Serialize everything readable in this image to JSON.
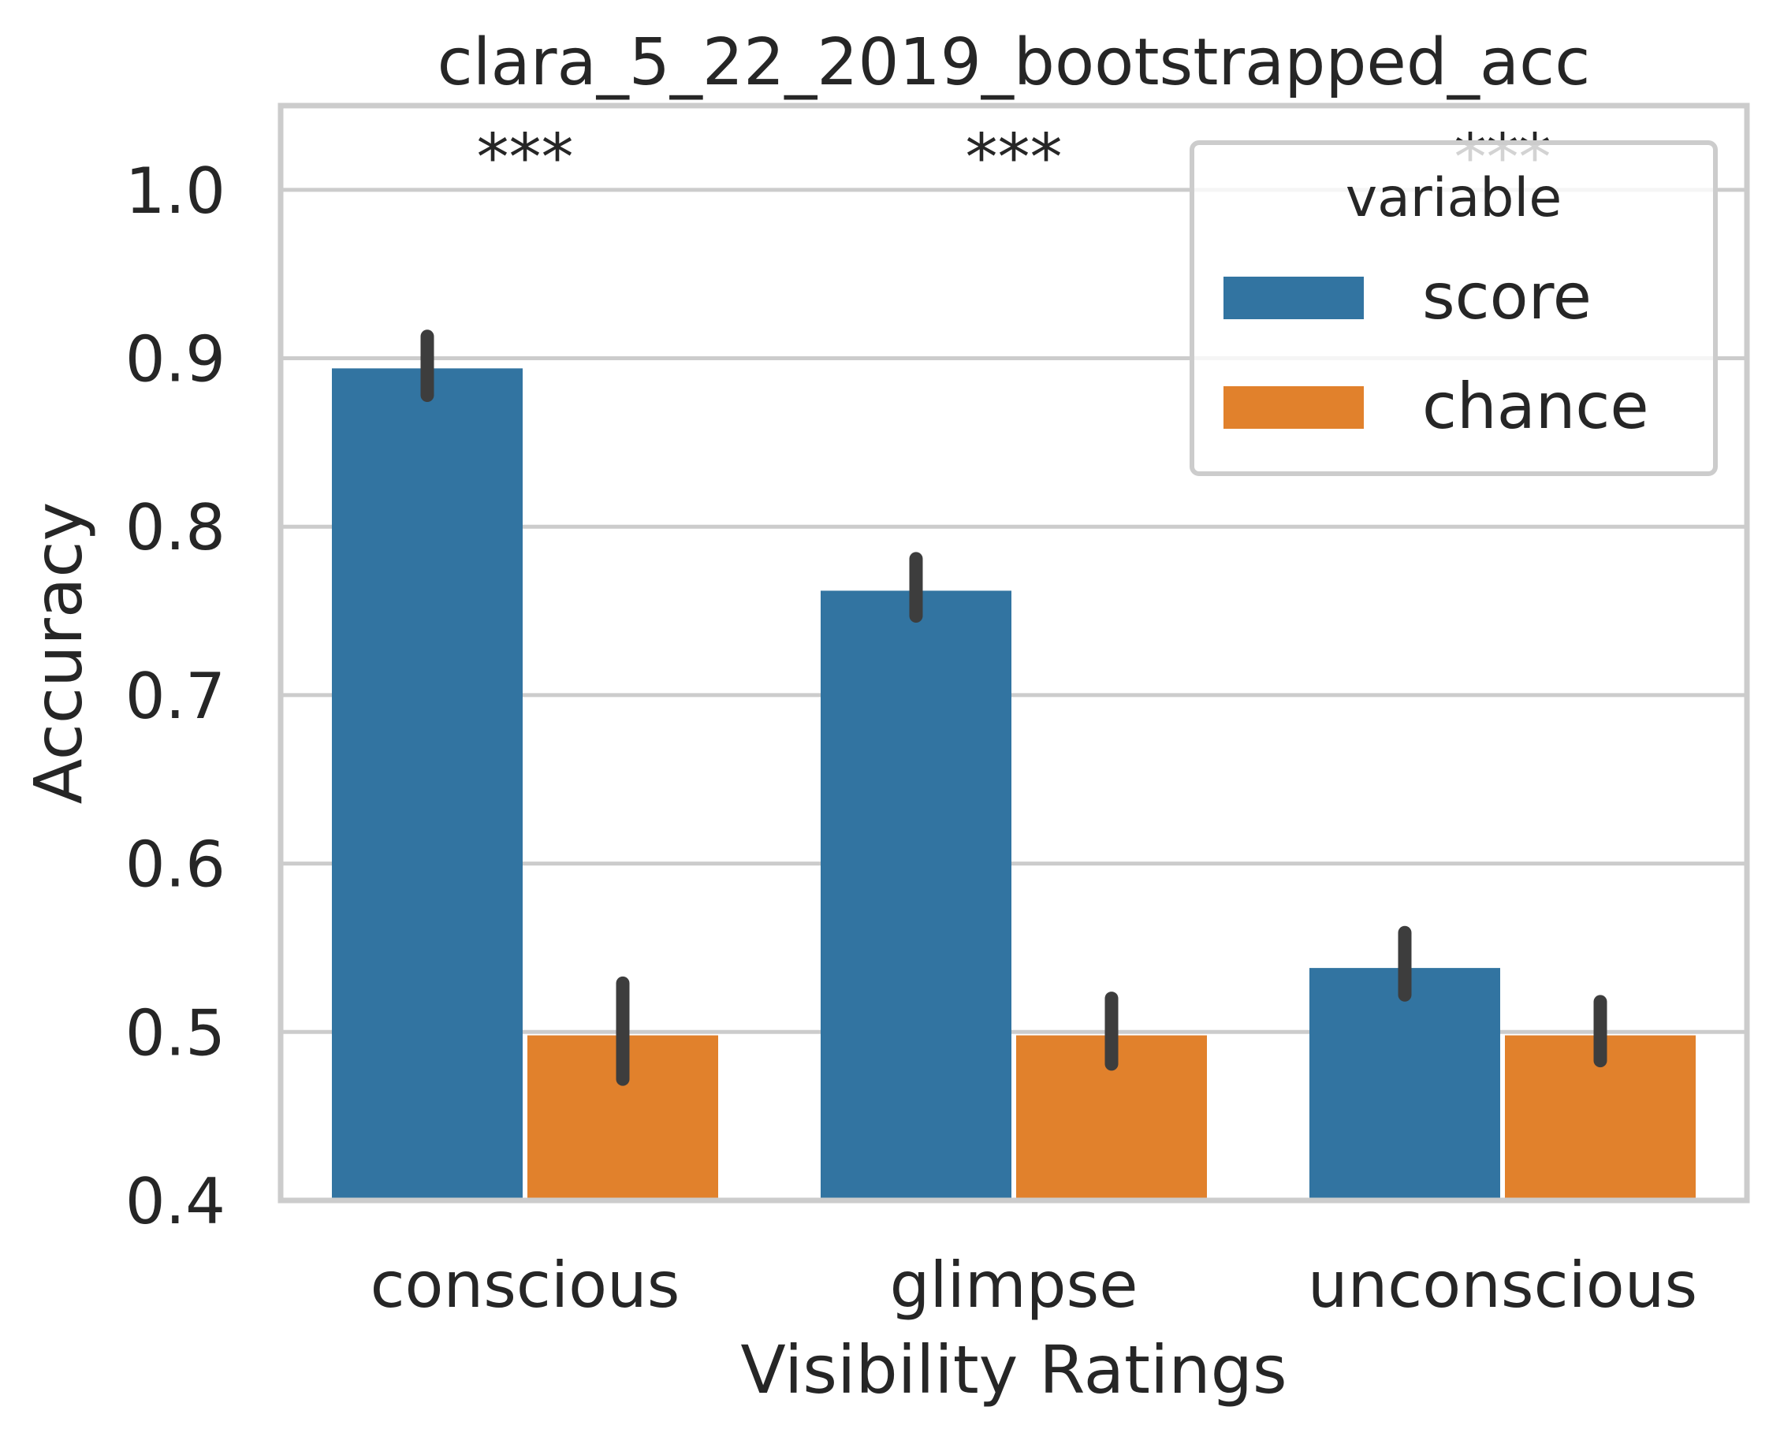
{
  "chart_data": {
    "type": "bar",
    "title": "clara_5_22_2019_bootstrapped_acc",
    "xlabel": "Visibility Ratings",
    "ylabel": "Accuracy",
    "categories": [
      "conscious",
      "glimpse",
      "unconscious"
    ],
    "ylim": [
      0.4,
      1.05
    ],
    "yticks": [
      0.4,
      0.5,
      0.6,
      0.7,
      0.8,
      0.9,
      1.0
    ],
    "ytick_labels": [
      "0.4",
      "0.5",
      "0.6",
      "0.7",
      "0.8",
      "0.9",
      "1.0"
    ],
    "grid": true,
    "legend": {
      "title": "variable",
      "placement": "top-right"
    },
    "series": [
      {
        "name": "score",
        "color": "#3274a1",
        "values": [
          0.894,
          0.762,
          0.538
        ],
        "ci_low": [
          0.878,
          0.747,
          0.522
        ],
        "ci_high": [
          0.913,
          0.781,
          0.559
        ]
      },
      {
        "name": "chance",
        "color": "#e1812c",
        "values": [
          0.498,
          0.498,
          0.498
        ],
        "ci_low": [
          0.472,
          0.481,
          0.483
        ],
        "ci_high": [
          0.529,
          0.52,
          0.518
        ]
      }
    ],
    "annotations": [
      "***",
      "***",
      "***"
    ]
  },
  "colors": {
    "text": "#262626",
    "grid": "#cccccc",
    "errorbar": "#3d3d3d"
  }
}
